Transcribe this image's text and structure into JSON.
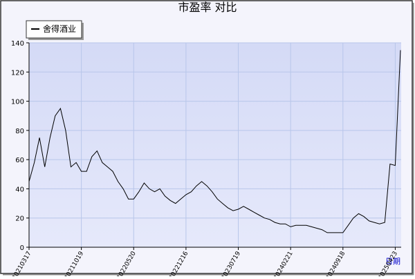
{
  "chart_data": {
    "type": "line",
    "title": "市盈率 对比",
    "x_label": "日期",
    "categories": [
      "20210317",
      null,
      null,
      null,
      null,
      null,
      null,
      null,
      null,
      null,
      "20211019",
      null,
      null,
      null,
      null,
      null,
      null,
      null,
      null,
      null,
      "20220520",
      null,
      null,
      null,
      null,
      null,
      null,
      null,
      null,
      null,
      "20221216",
      null,
      null,
      null,
      null,
      null,
      null,
      null,
      null,
      null,
      "20230719",
      null,
      null,
      null,
      null,
      null,
      null,
      null,
      null,
      null,
      "20240221",
      null,
      null,
      null,
      null,
      null,
      null,
      null,
      null,
      null,
      "20240918",
      null,
      null,
      null,
      null,
      null,
      null,
      null,
      null,
      null,
      "20250423",
      null
    ],
    "series": [
      {
        "name": "舍得酒业",
        "color": "#000000",
        "values": [
          45,
          58,
          75,
          55,
          75,
          90,
          95,
          80,
          55,
          58,
          52,
          52,
          62,
          66,
          58,
          55,
          52,
          45,
          40,
          33,
          33,
          38,
          44,
          40,
          38,
          40,
          35,
          32,
          30,
          33,
          36,
          38,
          42,
          45,
          42,
          38,
          33,
          30,
          27,
          25,
          26,
          28,
          26,
          24,
          22,
          20,
          19,
          17,
          16,
          16,
          14,
          15,
          15,
          15,
          14,
          13,
          12,
          10,
          10,
          10,
          10,
          15,
          20,
          23,
          21,
          18,
          17,
          16,
          17,
          57,
          56,
          135
        ]
      }
    ],
    "ylim": [
      0,
      140
    ],
    "yticks": [
      0,
      20,
      40,
      60,
      80,
      100,
      120,
      140
    ],
    "grid": true
  }
}
